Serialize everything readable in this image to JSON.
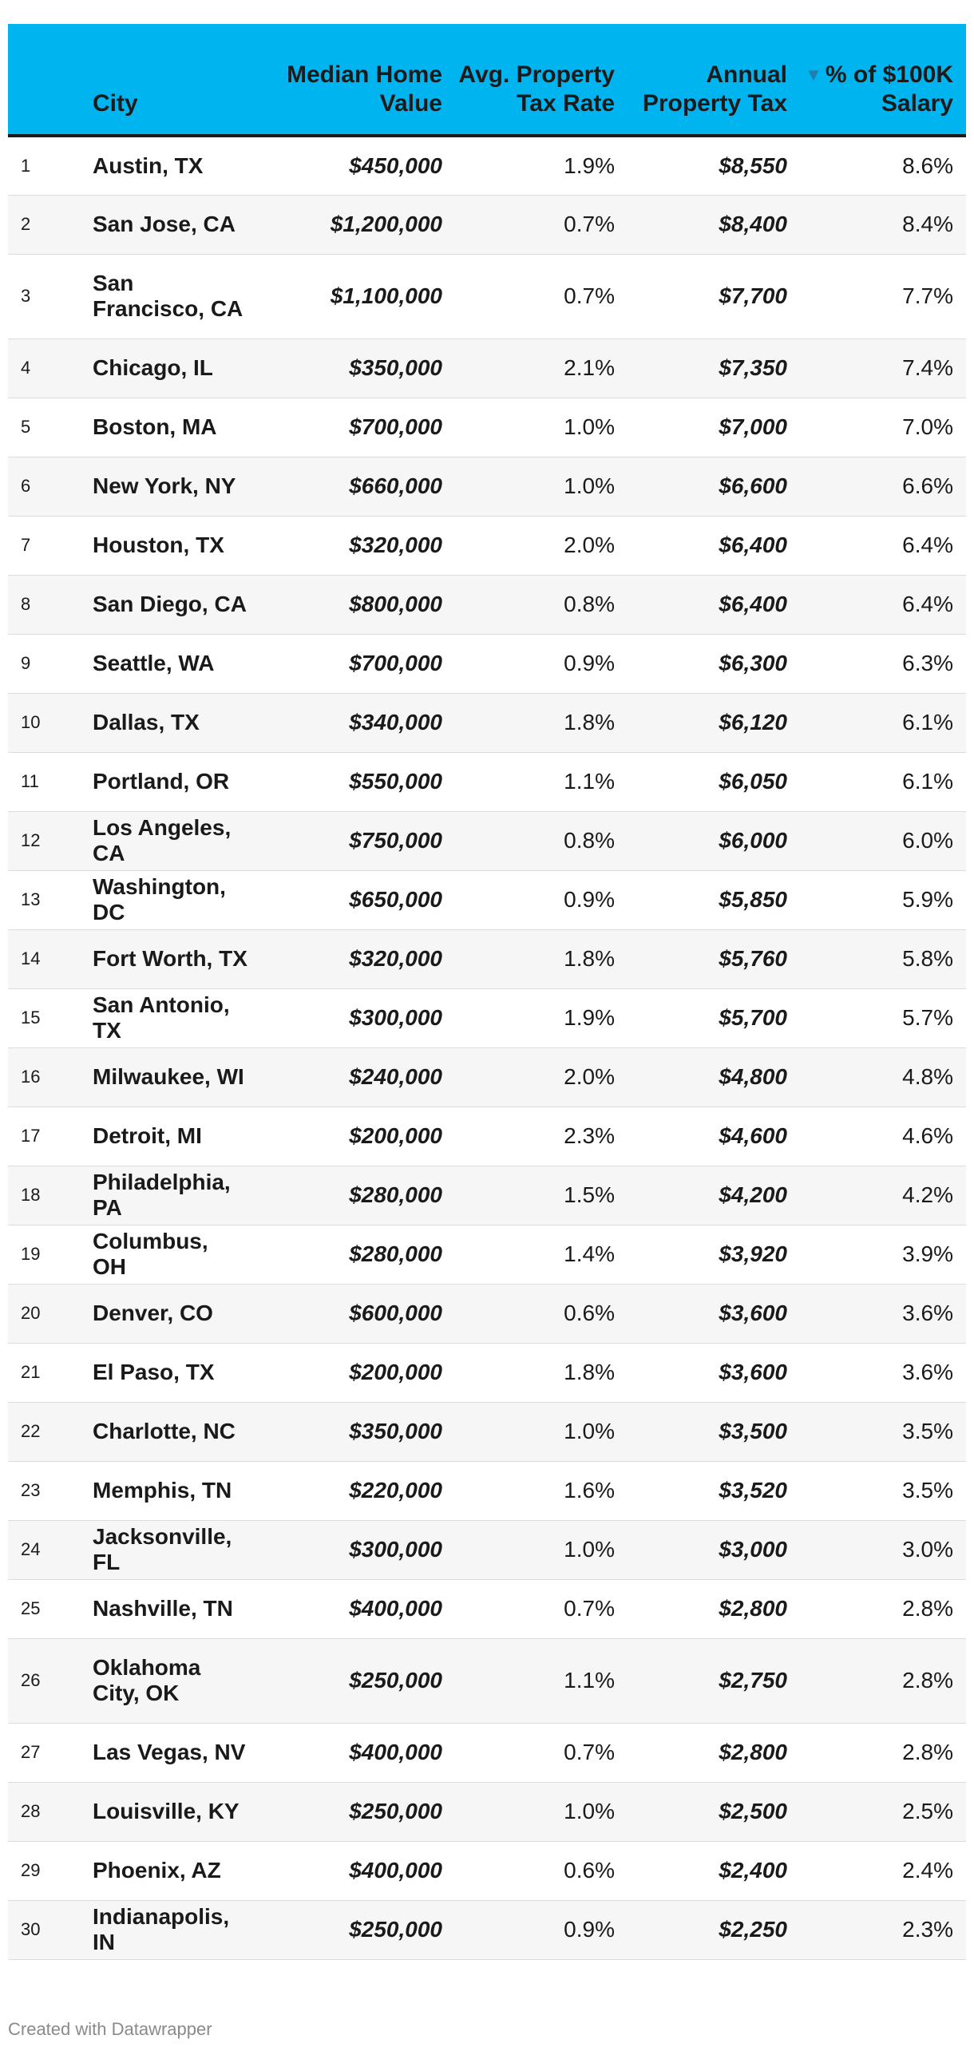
{
  "chart_data": {
    "type": "table",
    "columns": [
      {
        "key": "rank",
        "label": ""
      },
      {
        "key": "city",
        "label": "City"
      },
      {
        "key": "home",
        "label": "Median Home Value"
      },
      {
        "key": "rate",
        "label": "Avg. Property Tax Rate"
      },
      {
        "key": "tax",
        "label": "Annual Property Tax"
      },
      {
        "key": "pct",
        "label": "% of $100K Salary",
        "sorted": "descending"
      }
    ],
    "rows": [
      {
        "rank": "1",
        "city": "Austin, TX",
        "home": "$450,000",
        "rate": "1.9%",
        "tax": "$8,550",
        "pct": "8.6%"
      },
      {
        "rank": "2",
        "city": "San Jose, CA",
        "home": "$1,200,000",
        "rate": "0.7%",
        "tax": "$8,400",
        "pct": "8.4%"
      },
      {
        "rank": "3",
        "city": "San Francisco, CA",
        "home": "$1,100,000",
        "rate": "0.7%",
        "tax": "$7,700",
        "pct": "7.7%"
      },
      {
        "rank": "4",
        "city": "Chicago, IL",
        "home": "$350,000",
        "rate": "2.1%",
        "tax": "$7,350",
        "pct": "7.4%"
      },
      {
        "rank": "5",
        "city": "Boston, MA",
        "home": "$700,000",
        "rate": "1.0%",
        "tax": "$7,000",
        "pct": "7.0%"
      },
      {
        "rank": "6",
        "city": "New York, NY",
        "home": "$660,000",
        "rate": "1.0%",
        "tax": "$6,600",
        "pct": "6.6%"
      },
      {
        "rank": "7",
        "city": "Houston, TX",
        "home": "$320,000",
        "rate": "2.0%",
        "tax": "$6,400",
        "pct": "6.4%"
      },
      {
        "rank": "8",
        "city": "San Diego, CA",
        "home": "$800,000",
        "rate": "0.8%",
        "tax": "$6,400",
        "pct": "6.4%"
      },
      {
        "rank": "9",
        "city": "Seattle, WA",
        "home": "$700,000",
        "rate": "0.9%",
        "tax": "$6,300",
        "pct": "6.3%"
      },
      {
        "rank": "10",
        "city": "Dallas, TX",
        "home": "$340,000",
        "rate": "1.8%",
        "tax": "$6,120",
        "pct": "6.1%"
      },
      {
        "rank": "11",
        "city": "Portland, OR",
        "home": "$550,000",
        "rate": "1.1%",
        "tax": "$6,050",
        "pct": "6.1%"
      },
      {
        "rank": "12",
        "city": "Los Angeles, CA",
        "home": "$750,000",
        "rate": "0.8%",
        "tax": "$6,000",
        "pct": "6.0%"
      },
      {
        "rank": "13",
        "city": "Washington, DC",
        "home": "$650,000",
        "rate": "0.9%",
        "tax": "$5,850",
        "pct": "5.9%"
      },
      {
        "rank": "14",
        "city": "Fort Worth, TX",
        "home": "$320,000",
        "rate": "1.8%",
        "tax": "$5,760",
        "pct": "5.8%"
      },
      {
        "rank": "15",
        "city": "San Antonio, TX",
        "home": "$300,000",
        "rate": "1.9%",
        "tax": "$5,700",
        "pct": "5.7%"
      },
      {
        "rank": "16",
        "city": "Milwaukee, WI",
        "home": "$240,000",
        "rate": "2.0%",
        "tax": "$4,800",
        "pct": "4.8%"
      },
      {
        "rank": "17",
        "city": "Detroit, MI",
        "home": "$200,000",
        "rate": "2.3%",
        "tax": "$4,600",
        "pct": "4.6%"
      },
      {
        "rank": "18",
        "city": "Philadelphia, PA",
        "home": "$280,000",
        "rate": "1.5%",
        "tax": "$4,200",
        "pct": "4.2%"
      },
      {
        "rank": "19",
        "city": "Columbus, OH",
        "home": "$280,000",
        "rate": "1.4%",
        "tax": "$3,920",
        "pct": "3.9%"
      },
      {
        "rank": "20",
        "city": "Denver, CO",
        "home": "$600,000",
        "rate": "0.6%",
        "tax": "$3,600",
        "pct": "3.6%"
      },
      {
        "rank": "21",
        "city": "El Paso, TX",
        "home": "$200,000",
        "rate": "1.8%",
        "tax": "$3,600",
        "pct": "3.6%"
      },
      {
        "rank": "22",
        "city": "Charlotte, NC",
        "home": "$350,000",
        "rate": "1.0%",
        "tax": "$3,500",
        "pct": "3.5%"
      },
      {
        "rank": "23",
        "city": "Memphis, TN",
        "home": "$220,000",
        "rate": "1.6%",
        "tax": "$3,520",
        "pct": "3.5%"
      },
      {
        "rank": "24",
        "city": "Jacksonville, FL",
        "home": "$300,000",
        "rate": "1.0%",
        "tax": "$3,000",
        "pct": "3.0%"
      },
      {
        "rank": "25",
        "city": "Nashville, TN",
        "home": "$400,000",
        "rate": "0.7%",
        "tax": "$2,800",
        "pct": "2.8%"
      },
      {
        "rank": "26",
        "city": "Oklahoma City, OK",
        "home": "$250,000",
        "rate": "1.1%",
        "tax": "$2,750",
        "pct": "2.8%"
      },
      {
        "rank": "27",
        "city": "Las Vegas, NV",
        "home": "$400,000",
        "rate": "0.7%",
        "tax": "$2,800",
        "pct": "2.8%"
      },
      {
        "rank": "28",
        "city": "Louisville, KY",
        "home": "$250,000",
        "rate": "1.0%",
        "tax": "$2,500",
        "pct": "2.5%"
      },
      {
        "rank": "29",
        "city": "Phoenix, AZ",
        "home": "$400,000",
        "rate": "0.6%",
        "tax": "$2,400",
        "pct": "2.4%"
      },
      {
        "rank": "30",
        "city": "Indianapolis, IN",
        "home": "$250,000",
        "rate": "0.9%",
        "tax": "$2,250",
        "pct": "2.3%"
      }
    ]
  },
  "colors": {
    "header_background": "#00b4f0",
    "sort_icon": "#1e7fae",
    "stripe": "#f6f6f6"
  },
  "sort_icon": "triangle-down-icon",
  "footer": {
    "credit": "Created with Datawrapper"
  }
}
